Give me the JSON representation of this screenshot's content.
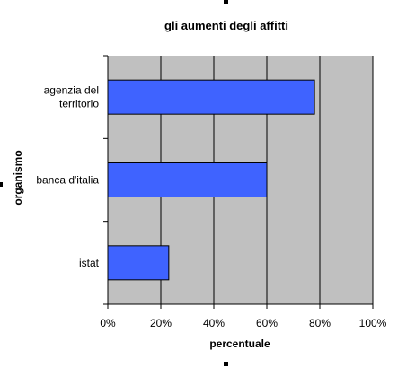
{
  "chart_data": {
    "type": "bar",
    "orientation": "horizontal",
    "title": "gli aumenti degli affitti",
    "xlabel": "percentuale",
    "ylabel": "organismo",
    "categories": [
      [
        "agenzia del",
        "territorio"
      ],
      [
        "banca d'italia"
      ],
      [
        "istat"
      ]
    ],
    "values": [
      78,
      60,
      23
    ],
    "xlim": [
      0,
      100
    ],
    "xticks": [
      "0%",
      "20%",
      "40%",
      "60%",
      "80%",
      "100%"
    ],
    "grid": true,
    "colors": {
      "bar": "#3f63ff",
      "plot_background": "#c0c0c0",
      "gridline": "#000000"
    }
  }
}
